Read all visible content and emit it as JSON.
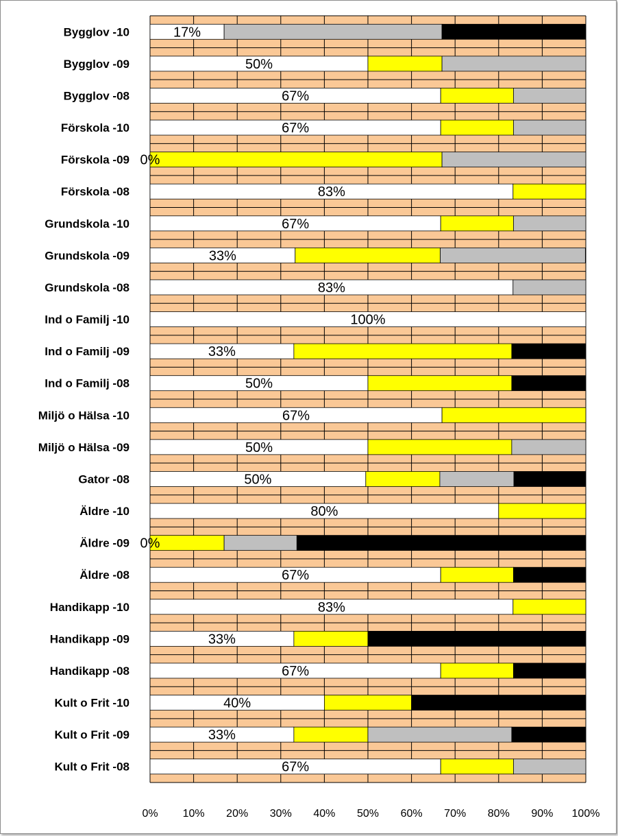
{
  "colors": {
    "plot_background": "#FAC896",
    "grid": "#000000",
    "series": [
      "#FFFFFF",
      "#FFFF00",
      "#BFBFBF",
      "#000000"
    ]
  },
  "chart_data": {
    "type": "bar",
    "orientation": "horizontal",
    "stacked": "100%",
    "title": "",
    "xlabel": "",
    "ylabel": "",
    "xlim": [
      0,
      1
    ],
    "x_tick_labels": [
      "0%",
      "10%",
      "20%",
      "30%",
      "40%",
      "50%",
      "60%",
      "70%",
      "80%",
      "90%",
      "100%"
    ],
    "grid": true,
    "legend": "none",
    "categories": [
      "Bygglov -10",
      "Bygglov -09",
      "Bygglov -08",
      "Förskola -10",
      "Förskola -09",
      "Förskola -08",
      "Grundskola -10",
      "Grundskola -09",
      "Grundskola -08",
      "Ind o Familj -10",
      "Ind o Familj -09",
      "Ind o Familj -08",
      "Miljö o Hälsa -10",
      "Miljö o Hälsa -09",
      "Gator -08",
      "Äldre -10",
      "Äldre -09",
      "Äldre -08",
      "Handikapp -10",
      "Handikapp -09",
      "Handikapp -08",
      "Kult o Frit -10",
      "Kult o Frit -09",
      "Kult o Frit -08"
    ],
    "series": [
      {
        "color": "#FFFFFF",
        "values": [
          0.17,
          0.5,
          0.667,
          0.667,
          0.0,
          0.833,
          0.667,
          0.333,
          0.833,
          1.0,
          0.33,
          0.5,
          0.67,
          0.5,
          0.495,
          0.8,
          0.0,
          0.667,
          0.833,
          0.33,
          0.667,
          0.4,
          0.33,
          0.667
        ]
      },
      {
        "color": "#FFFF00",
        "values": [
          0.0,
          0.17,
          0.167,
          0.167,
          0.67,
          0.167,
          0.167,
          0.333,
          0.0,
          0.0,
          0.5,
          0.33,
          0.33,
          0.33,
          0.17,
          0.2,
          0.17,
          0.167,
          0.167,
          0.17,
          0.167,
          0.2,
          0.17,
          0.167
        ]
      },
      {
        "color": "#BFBFBF",
        "values": [
          0.5,
          0.33,
          0.167,
          0.167,
          0.33,
          0.0,
          0.167,
          0.333,
          0.167,
          0.0,
          0.0,
          0.0,
          0.0,
          0.17,
          0.17,
          0.0,
          0.167,
          0.0,
          0.0,
          0.0,
          0.0,
          0.0,
          0.33,
          0.167
        ]
      },
      {
        "color": "#000000",
        "values": [
          0.33,
          0.0,
          0.0,
          0.0,
          0.0,
          0.0,
          0.0,
          0.0,
          0.0,
          0.0,
          0.17,
          0.17,
          0.0,
          0.0,
          0.165,
          0.0,
          0.663,
          0.167,
          0.0,
          0.5,
          0.167,
          0.4,
          0.17,
          0.0
        ]
      }
    ],
    "data_labels": [
      "17%",
      "50%",
      "67%",
      "67%",
      "0%",
      "83%",
      "67%",
      "33%",
      "83%",
      "100%",
      "33%",
      "50%",
      "67%",
      "50%",
      "50%",
      "80%",
      "0%",
      "67%",
      "83%",
      "33%",
      "67%",
      "40%",
      "33%",
      "67%"
    ]
  }
}
